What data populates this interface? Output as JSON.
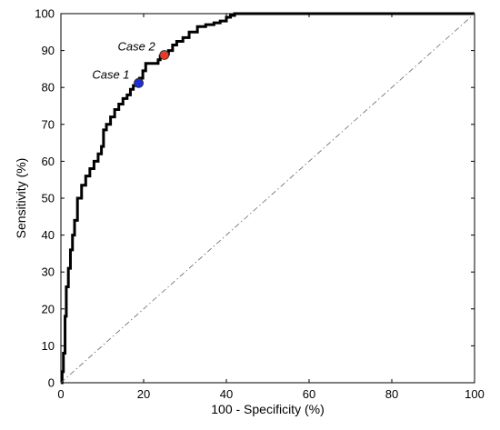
{
  "chart_data": {
    "type": "line",
    "title": "",
    "xlabel": "100 - Specificity (%)",
    "ylabel": "Sensitivity (%)",
    "xlim": [
      0,
      100
    ],
    "ylim": [
      0,
      100
    ],
    "xticks": [
      "0",
      "20",
      "40",
      "60",
      "80",
      "100"
    ],
    "yticks": [
      "0",
      "10",
      "20",
      "30",
      "40",
      "50",
      "60",
      "70",
      "80",
      "90",
      "100"
    ],
    "grid": false,
    "legend": "none",
    "series": [
      {
        "color": "#000000",
        "style": "solid",
        "x": [
          0,
          0.3,
          0.6,
          1.0,
          1.3,
          1.8,
          2.3,
          2.8,
          3.3,
          4.0,
          5.0,
          6.0,
          7.0,
          8.0,
          9.0,
          9.8,
          10.3,
          11.0,
          12.0,
          13.0,
          14.0,
          15.0,
          16.0,
          16.8,
          17.5,
          18.3,
          19.0,
          19.8,
          20.5,
          22.0,
          23.5,
          24.0,
          25.0,
          26.0,
          27.0,
          28.0,
          29.5,
          31.0,
          33.0,
          35.0,
          37.0,
          38.5,
          40.0,
          41.0,
          42.0,
          45.0,
          60.0,
          80.0,
          100.0
        ],
        "y": [
          0,
          3,
          8,
          18,
          26,
          31,
          36,
          40,
          44,
          50,
          53.5,
          56,
          58,
          60,
          62,
          64,
          68.5,
          70,
          72,
          74,
          75.5,
          77,
          78,
          79.5,
          80.5,
          81,
          82.5,
          84.5,
          86.5,
          86.5,
          87.5,
          88.5,
          89,
          90,
          91.5,
          92.5,
          93.5,
          95,
          96.5,
          97,
          97.5,
          98,
          99,
          99.5,
          100,
          100,
          100,
          100,
          100
        ]
      },
      {
        "color": "#666666",
        "style": "dash-dot",
        "x": [
          0,
          100
        ],
        "y": [
          0,
          100
        ]
      }
    ],
    "annotations": [
      {
        "label": "Case 1",
        "x": 18.8,
        "y": 81.2,
        "color": "#1f2fd6"
      },
      {
        "label": "Case 2",
        "x": 25.0,
        "y": 88.8,
        "color": "#e23a2b"
      }
    ]
  }
}
